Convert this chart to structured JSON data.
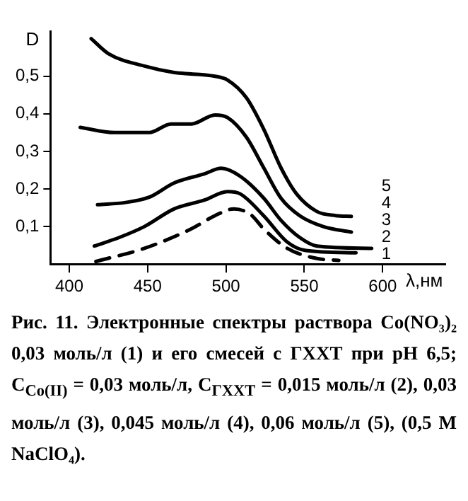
{
  "chart_data": {
    "type": "line",
    "xlabel": "λ,нм",
    "ylabel": "D",
    "xlim": [
      388,
      640
    ],
    "xticks": [
      400,
      450,
      500,
      550,
      600
    ],
    "ylim": [
      0,
      0.62
    ],
    "yticks": [
      {
        "value": 0.1,
        "label": "0,1"
      },
      {
        "value": 0.2,
        "label": "0,2"
      },
      {
        "value": 0.3,
        "label": "0,3"
      },
      {
        "value": 0.4,
        "label": "0,4"
      },
      {
        "value": 0.5,
        "label": "0,5"
      }
    ],
    "grid": false,
    "legend": false,
    "marker": "none",
    "series": [
      {
        "name": "5",
        "color": "#000000",
        "line_style": "solid",
        "x": [
          414,
          425,
          448,
          467,
          493,
          501,
          513,
          524,
          535,
          545,
          558,
          570,
          580
        ],
        "values": [
          0.6,
          0.56,
          0.527,
          0.51,
          0.5,
          0.49,
          0.443,
          0.36,
          0.257,
          0.187,
          0.14,
          0.129,
          0.127
        ]
      },
      {
        "name": "4",
        "color": "#000000",
        "line_style": "solid",
        "x": [
          407,
          429,
          451,
          465,
          478,
          493,
          501,
          513,
          524,
          535,
          547,
          562,
          580
        ],
        "values": [
          0.364,
          0.35,
          0.35,
          0.373,
          0.373,
          0.397,
          0.39,
          0.338,
          0.257,
          0.176,
          0.129,
          0.1,
          0.085
        ]
      },
      {
        "name": "3",
        "color": "#000000",
        "line_style": "solid",
        "x": [
          418,
          436,
          451,
          467,
          486,
          497,
          509,
          524,
          535,
          547,
          558,
          593
        ],
        "values": [
          0.158,
          0.164,
          0.178,
          0.216,
          0.24,
          0.255,
          0.234,
          0.176,
          0.117,
          0.071,
          0.048,
          0.042
        ]
      },
      {
        "name": "2",
        "color": "#000000",
        "line_style": "solid",
        "x": [
          416,
          432,
          448,
          467,
          486,
          501,
          509,
          524,
          539,
          551,
          583
        ],
        "values": [
          0.048,
          0.071,
          0.1,
          0.147,
          0.17,
          0.193,
          0.187,
          0.129,
          0.059,
          0.036,
          0.03
        ]
      },
      {
        "name": "1",
        "color": "#000000",
        "line_style": "dashed",
        "x": [
          417,
          448,
          478,
          493,
          505,
          516,
          524,
          539,
          558,
          572
        ],
        "values": [
          0.007,
          0.042,
          0.094,
          0.129,
          0.147,
          0.131,
          0.094,
          0.042,
          0.015,
          0.01
        ]
      }
    ],
    "annotations": [
      "Рис. 11. Электронные спектры раствора Co(NO₃)₂ 0,03 моль/л (1) и его смесей с ГХХТ при pH 6,5; C$_{Co(II)}$ = 0,03 моль/л, C$_{ГХХТ}$ = 0,015 моль/л (2), 0,03 моль/л (3), 0,045 моль/л (4), 0,06 моль/л (5), (0,5 M NaClO₄)."
    ]
  }
}
